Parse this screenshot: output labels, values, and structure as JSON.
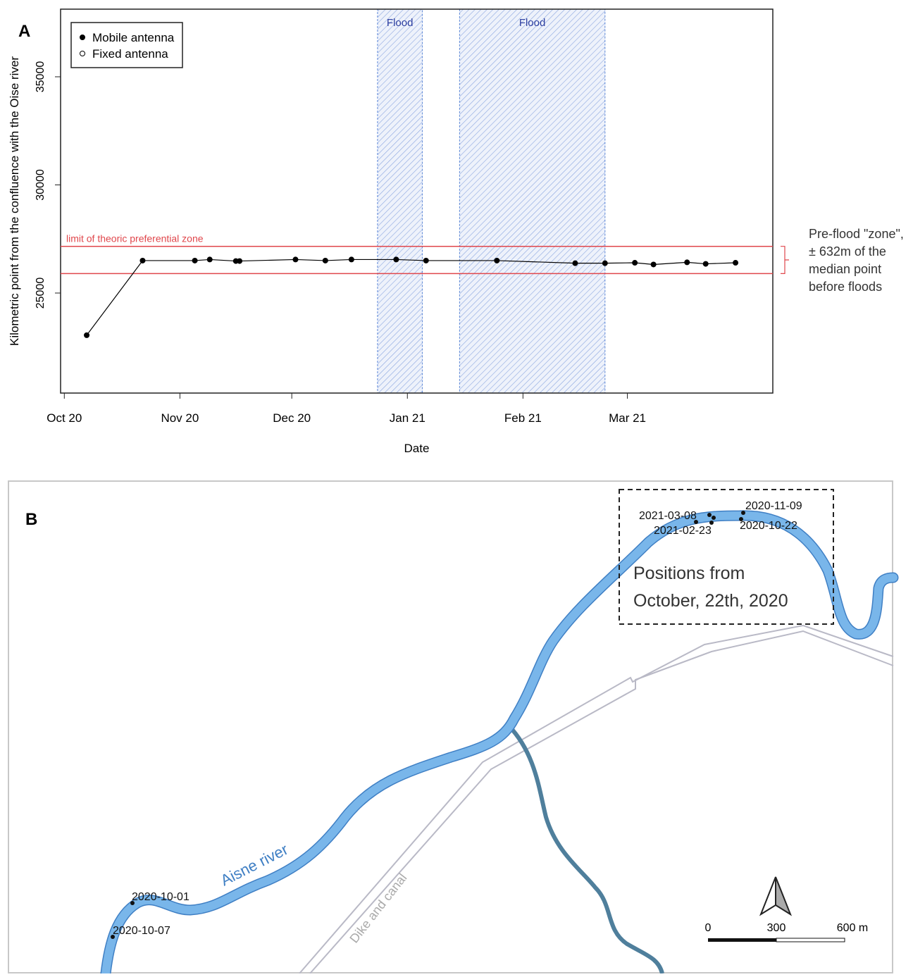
{
  "chart_data": {
    "type": "line",
    "panel_label": "A",
    "x_label": "Date",
    "y_label": "Kilometric point from the confluence with the Oise river",
    "x": [
      "2020-10-07",
      "2020-10-22",
      "2020-11-05",
      "2020-11-09",
      "2020-11-16",
      "2020-11-17",
      "2020-12-02",
      "2020-12-10",
      "2020-12-17",
      "2020-12-29",
      "2021-01-06",
      "2021-01-25",
      "2021-02-15",
      "2021-02-23",
      "2021-03-03",
      "2021-03-08",
      "2021-03-17",
      "2021-03-22",
      "2021-03-30"
    ],
    "series": [
      {
        "name": "Mobile antenna",
        "color": "#000000",
        "values": [
          23050,
          26500,
          26500,
          26550,
          26480,
          26480,
          26550,
          26500,
          26550,
          26550,
          26500,
          26500,
          26380,
          26380,
          26400,
          26320,
          26420,
          26350,
          26400
        ]
      }
    ],
    "legend": [
      {
        "label": "Mobile antenna",
        "marker": "filled"
      },
      {
        "label": "Fixed antenna",
        "marker": "open"
      }
    ],
    "legend_position": "top-left",
    "xlim": [
      "2020-09-30",
      "2021-04-09"
    ],
    "xticks": [
      {
        "value": "2020-10",
        "label": "Oct 20"
      },
      {
        "value": "2020-11",
        "label": "Nov 20"
      },
      {
        "value": "2020-12",
        "label": "Dec 20"
      },
      {
        "value": "2021-01",
        "label": "Jan 21"
      },
      {
        "value": "2021-02",
        "label": "Feb 21"
      },
      {
        "value": "2021-03",
        "label": "Mar 21"
      }
    ],
    "ylim": [
      20375,
      38127
    ],
    "yticks": [
      25000,
      30000,
      35000
    ],
    "floods": [
      {
        "label": "Flood",
        "start": "2020-12-24",
        "end": "2021-01-05"
      },
      {
        "label": "Flood",
        "start": "2021-01-15",
        "end": "2021-02-23"
      }
    ],
    "flood_color": "#5b86d6",
    "zone": {
      "label": "limit of theoric preferential zone",
      "limits": [
        25900,
        27160
      ],
      "color": "#e0474c"
    },
    "note": [
      "Pre-flood \"zone\",",
      "± 632m of the",
      "median point",
      "before floods"
    ]
  },
  "map": {
    "panel_label": "B",
    "box_text": [
      "Positions from",
      "October, 22th, 2020"
    ],
    "point_labels": [
      "2021-03-08",
      "2021-02-23",
      "2020-11-09",
      "2020-10-22",
      "2020-10-01",
      "2020-10-07"
    ],
    "river_label": "Aisne river",
    "canal_label": "Dike and canal",
    "scale_labels": [
      "0",
      "300",
      "600 m"
    ]
  }
}
